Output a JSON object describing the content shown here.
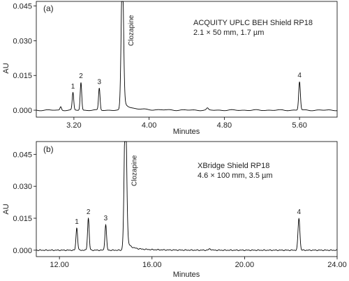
{
  "chart_data": [
    {
      "type": "line",
      "panel_label": "(a)",
      "column_text": "ACQUITY UPLC BEH Shield RP18",
      "column_dims": "2.1 × 50 mm, 1.7 µm",
      "xlabel": "Minutes",
      "ylabel": "AU",
      "xlim": [
        2.8,
        6.0
      ],
      "ylim": [
        -0.003,
        0.047
      ],
      "xticks": [
        3.2,
        4.0,
        4.8,
        5.6
      ],
      "xtick_labels": [
        "3.20",
        "4.00",
        "4.80",
        "5.60"
      ],
      "yticks": [
        0.0,
        0.015,
        0.03,
        0.045
      ],
      "ytick_labels": [
        "0.000",
        "0.015",
        "0.030",
        "0.045"
      ],
      "baseline": 0.0,
      "peaks": [
        {
          "label": "",
          "t": 3.06,
          "h": 0.0015,
          "w": 0.008
        },
        {
          "label": "1",
          "t": 3.19,
          "h": 0.0075,
          "w": 0.008
        },
        {
          "label": "2",
          "t": 3.275,
          "h": 0.012,
          "w": 0.008
        },
        {
          "label": "3",
          "t": 3.47,
          "h": 0.0095,
          "w": 0.008
        },
        {
          "label": "Clozapine",
          "t": 3.715,
          "h": 0.06,
          "w": 0.012,
          "tail": true
        },
        {
          "label": "",
          "t": 4.62,
          "h": 0.0008,
          "w": 0.01
        },
        {
          "label": "4",
          "t": 5.6,
          "h": 0.0123,
          "w": 0.009
        }
      ]
    },
    {
      "type": "line",
      "panel_label": "(b)",
      "column_text": "XBridge Shield RP18",
      "column_dims": "4.6 × 100 mm, 3.5 µm",
      "xlabel": "Minutes",
      "ylabel": "AU",
      "xlim": [
        11.0,
        24.0
      ],
      "ylim": [
        -0.003,
        0.051
      ],
      "xticks": [
        12.0,
        16.0,
        20.0,
        24.0
      ],
      "xtick_labels": [
        "12.00",
        "16.00",
        "20.00",
        "24.00"
      ],
      "yticks": [
        0.0,
        0.015,
        0.03,
        0.045
      ],
      "ytick_labels": [
        "0.000",
        "0.015",
        "0.030",
        "0.045"
      ],
      "baseline": 0.0,
      "peaks": [
        {
          "label": "1",
          "t": 12.75,
          "h": 0.0105,
          "w": 0.035
        },
        {
          "label": "2",
          "t": 13.25,
          "h": 0.015,
          "w": 0.035
        },
        {
          "label": "3",
          "t": 14.0,
          "h": 0.012,
          "w": 0.035
        },
        {
          "label": "Clozapine",
          "t": 14.85,
          "h": 0.07,
          "w": 0.05,
          "tail": true
        },
        {
          "label": "",
          "t": 18.5,
          "h": 0.0006,
          "w": 0.05
        },
        {
          "label": "4",
          "t": 22.35,
          "h": 0.015,
          "w": 0.04
        }
      ]
    }
  ]
}
